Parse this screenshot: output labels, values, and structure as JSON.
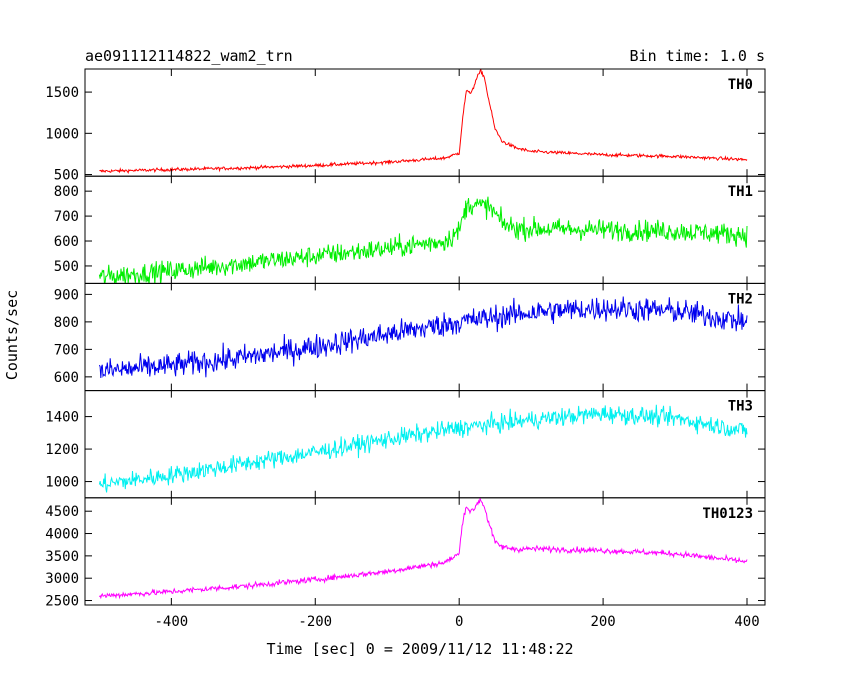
{
  "chart_data": {
    "type": "line",
    "title": "ae091112114822_wam2_trn",
    "subtitle": "Bin time: 1.0 s",
    "xlabel": "Time [sec] 0 = 2009/11/12 11:48:22",
    "ylabel": "Counts/sec",
    "xlim": [
      -520,
      425
    ],
    "x_ticks": [
      -400,
      -200,
      0,
      200,
      400
    ],
    "x_data_range": [
      -500,
      400
    ],
    "grid": false,
    "panels": [
      {
        "name": "TH0",
        "color": "#ff0000",
        "ylim": [
          480,
          1780
        ],
        "y_ticks": [
          500,
          1000,
          1500
        ],
        "noise": 14,
        "series": {
          "x": [
            -500,
            -400,
            -300,
            -200,
            -100,
            -20,
            0,
            5,
            10,
            15,
            20,
            25,
            30,
            35,
            40,
            50,
            60,
            80,
            100,
            150,
            200,
            300,
            400
          ],
          "values": [
            540,
            560,
            580,
            610,
            650,
            700,
            760,
            1200,
            1520,
            1480,
            1560,
            1680,
            1760,
            1680,
            1450,
            1050,
            900,
            820,
            780,
            760,
            740,
            720,
            680
          ]
        }
      },
      {
        "name": "TH1",
        "color": "#00ee00",
        "ylim": [
          430,
          860
        ],
        "y_ticks": [
          500,
          600,
          700,
          800
        ],
        "noise": 30,
        "series": {
          "x": [
            -500,
            -400,
            -300,
            -200,
            -100,
            -20,
            0,
            10,
            20,
            30,
            40,
            50,
            60,
            80,
            100,
            200,
            300,
            400
          ],
          "values": [
            455,
            480,
            510,
            540,
            570,
            600,
            640,
            740,
            750,
            740,
            740,
            710,
            670,
            650,
            650,
            645,
            640,
            625
          ]
        }
      },
      {
        "name": "TH2",
        "color": "#0000ee",
        "ylim": [
          550,
          940
        ],
        "y_ticks": [
          600,
          700,
          800,
          900
        ],
        "noise": 32,
        "series": {
          "x": [
            -500,
            -400,
            -300,
            -200,
            -100,
            0,
            100,
            200,
            300,
            400
          ],
          "values": [
            620,
            640,
            670,
            710,
            755,
            800,
            835,
            850,
            840,
            800
          ]
        }
      },
      {
        "name": "TH3",
        "color": "#00f0f0",
        "ylim": [
          900,
          1560
        ],
        "y_ticks": [
          1000,
          1200,
          1400
        ],
        "noise": 40,
        "series": {
          "x": [
            -500,
            -400,
            -300,
            -200,
            -100,
            0,
            100,
            200,
            300,
            400
          ],
          "values": [
            980,
            1040,
            1110,
            1180,
            1260,
            1330,
            1380,
            1420,
            1390,
            1310
          ]
        }
      },
      {
        "name": "TH0123",
        "color": "#ff00ff",
        "ylim": [
          2400,
          4800
        ],
        "y_ticks": [
          2500,
          3000,
          3500,
          4000,
          4500
        ],
        "noise": 45,
        "series": {
          "x": [
            -500,
            -400,
            -300,
            -200,
            -100,
            -20,
            0,
            5,
            10,
            15,
            20,
            25,
            30,
            35,
            40,
            50,
            60,
            80,
            100,
            200,
            300,
            400
          ],
          "values": [
            2600,
            2700,
            2820,
            2970,
            3150,
            3350,
            3550,
            4300,
            4620,
            4500,
            4520,
            4680,
            4760,
            4600,
            4300,
            3800,
            3700,
            3650,
            3660,
            3620,
            3550,
            3370
          ]
        }
      }
    ]
  }
}
